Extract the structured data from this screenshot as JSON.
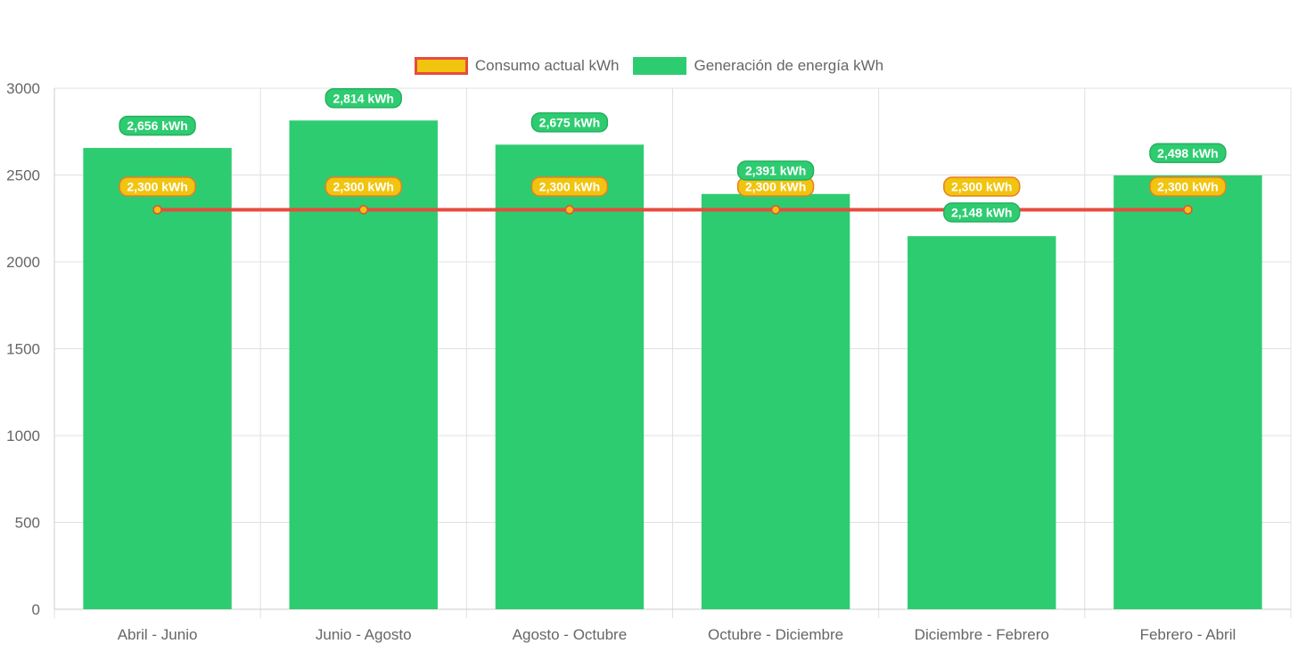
{
  "chart_data": {
    "type": "bar",
    "categories": [
      "Abril - Junio",
      "Junio - Agosto",
      "Agosto - Octubre",
      "Octubre - Diciembre",
      "Diciembre - Febrero",
      "Febrero - Abril"
    ],
    "series": [
      {
        "name": "Consumo actual kWh",
        "type": "line",
        "values": [
          2300,
          2300,
          2300,
          2300,
          2300,
          2300
        ],
        "labels": [
          "2,300 kWh",
          "2,300 kWh",
          "2,300 kWh",
          "2,300 kWh",
          "2,300 kWh",
          "2,300 kWh"
        ],
        "line_color": "#e74c3c",
        "fill_color": "#f1c40f"
      },
      {
        "name": "Generación de energía kWh",
        "type": "bar",
        "values": [
          2656,
          2814,
          2675,
          2391,
          2148,
          2498
        ],
        "labels": [
          "2,656 kWh",
          "2,814 kWh",
          "2,675 kWh",
          "2,391 kWh",
          "2,148 kWh",
          "2,498 kWh"
        ],
        "color": "#2ecc71"
      }
    ],
    "ylim": [
      0,
      3000
    ],
    "yticks": [
      "0",
      "500",
      "1000",
      "1500",
      "2000",
      "2500",
      "3000"
    ],
    "grid": true,
    "legend": "top-center"
  }
}
